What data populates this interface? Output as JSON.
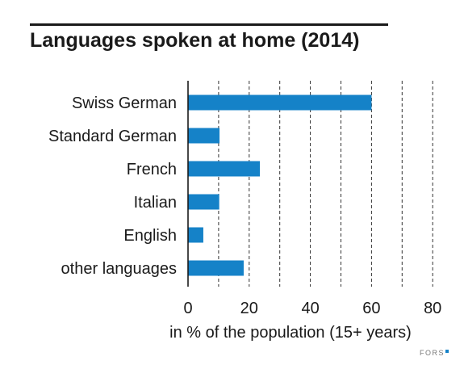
{
  "chart_data": {
    "type": "bar",
    "orientation": "horizontal",
    "title": "Languages spoken at home (2014)",
    "xlabel": "in % of the population (15+ years)",
    "ylabel": "",
    "categories": [
      "Swiss German",
      "Standard German",
      "French",
      "Italian",
      "English",
      "other languages"
    ],
    "values": [
      60,
      10.3,
      23.5,
      10.2,
      5,
      18.2
    ],
    "xlim": [
      0,
      80
    ],
    "xticks": [
      0,
      20,
      40,
      60,
      80
    ],
    "xtick_labels": [
      "0",
      "20",
      "40",
      "60",
      "80"
    ],
    "gridlines": [
      10,
      20,
      30,
      40,
      50,
      60,
      70,
      80
    ],
    "grid": true,
    "grid_style": "dashed",
    "bar_color": "#1582c8",
    "legend": "none"
  },
  "branding": {
    "text": "FORS",
    "accent_color": "#1582c8"
  }
}
